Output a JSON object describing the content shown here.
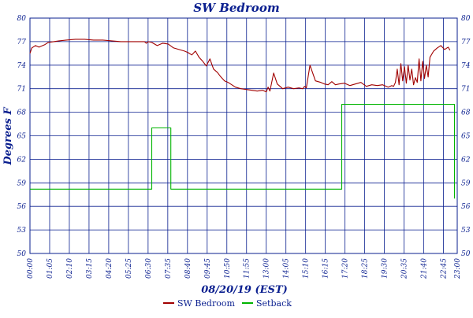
{
  "chart_data": {
    "type": "line",
    "title": "SW Bedroom",
    "xlabel": "08/20/19 (EST)",
    "ylabel": "Degrees F",
    "ylim": [
      50,
      80
    ],
    "y_ticks": [
      "50",
      "53",
      "56",
      "59",
      "62",
      "65",
      "68",
      "71",
      "74",
      "77",
      "80"
    ],
    "x_tick_labels": [
      "00:00",
      "01:05",
      "02:10",
      "03:15",
      "04:20",
      "05:25",
      "06:30",
      "07:35",
      "08:40",
      "09:45",
      "10:50",
      "11:55",
      "13:00",
      "14:05",
      "15:10",
      "16:15",
      "17:20",
      "18:25",
      "19:30",
      "20:35",
      "21:40",
      "22:45",
      "23:00"
    ],
    "x_unit": "hours",
    "x_range": [
      0,
      23.5
    ],
    "grid": true,
    "legend_position": "bottom",
    "colors": {
      "axis": "#0a1f8f",
      "grid": "#0a1f8f",
      "sw_bedroom": "#a00000",
      "setback": "#00b400"
    },
    "series": [
      {
        "name": "SW Bedroom",
        "x": [
          0,
          0.1,
          0.3,
          0.5,
          0.8,
          1.0,
          1.3,
          1.6,
          2.0,
          2.5,
          3.0,
          3.5,
          4.0,
          4.5,
          5.0,
          5.5,
          6.0,
          6.3,
          6.4,
          6.5,
          6.7,
          7.0,
          7.3,
          7.6,
          7.9,
          8.2,
          8.5,
          8.7,
          8.9,
          9.1,
          9.3,
          9.5,
          9.7,
          9.9,
          10.1,
          10.3,
          10.5,
          10.7,
          10.9,
          11.1,
          11.3,
          11.6,
          11.9,
          12.2,
          12.5,
          12.8,
          13.0,
          13.1,
          13.2,
          13.4,
          13.6,
          13.9,
          14.2,
          14.5,
          14.8,
          15.0,
          15.1,
          15.2,
          15.4,
          15.7,
          16.0,
          16.2,
          16.4,
          16.6,
          16.8,
          17.0,
          17.3,
          17.6,
          17.9,
          18.2,
          18.5,
          18.8,
          19.1,
          19.4,
          19.7,
          19.9,
          20.0,
          20.1,
          20.2,
          20.3,
          20.4,
          20.5,
          20.6,
          20.7,
          20.8,
          20.9,
          21.0,
          21.1,
          21.2,
          21.3,
          21.4,
          21.5,
          21.6,
          21.7,
          21.8,
          21.9,
          22.0,
          22.2,
          22.4,
          22.6,
          22.8,
          23.0,
          23.1
        ],
        "values": [
          75.5,
          76.2,
          76.5,
          76.3,
          76.6,
          76.9,
          77.0,
          77.1,
          77.2,
          77.3,
          77.3,
          77.2,
          77.2,
          77.1,
          77.0,
          77.0,
          77.0,
          77.0,
          76.8,
          77.0,
          76.9,
          76.5,
          76.8,
          76.7,
          76.2,
          76.0,
          75.8,
          75.6,
          75.3,
          75.8,
          75.0,
          74.5,
          73.9,
          74.8,
          73.5,
          73.1,
          72.5,
          72.0,
          71.8,
          71.5,
          71.2,
          71.0,
          70.9,
          70.8,
          70.7,
          70.8,
          70.6,
          71.2,
          70.7,
          73.0,
          71.6,
          71.0,
          71.2,
          71.0,
          71.1,
          71.0,
          71.3,
          71.1,
          74.0,
          72.0,
          71.8,
          71.6,
          71.5,
          71.9,
          71.5,
          71.6,
          71.7,
          71.4,
          71.6,
          71.8,
          71.3,
          71.5,
          71.4,
          71.5,
          71.2,
          71.4,
          71.3,
          71.8,
          73.5,
          71.5,
          74.2,
          72.0,
          73.8,
          71.7,
          74.0,
          72.1,
          73.5,
          71.5,
          72.4,
          71.8,
          74.8,
          72.0,
          74.5,
          72.3,
          74.0,
          72.5,
          75.0,
          75.8,
          76.2,
          76.5,
          76.0,
          76.3,
          75.9
        ]
      },
      {
        "name": "Setback",
        "x": [
          0,
          6.6,
          6.7,
          7.6,
          7.75,
          17.0,
          17.15,
          23.2,
          23.35
        ],
        "values": [
          58.2,
          58.2,
          66.0,
          66.0,
          58.2,
          58.2,
          69.0,
          69.0,
          57.0
        ]
      }
    ]
  }
}
